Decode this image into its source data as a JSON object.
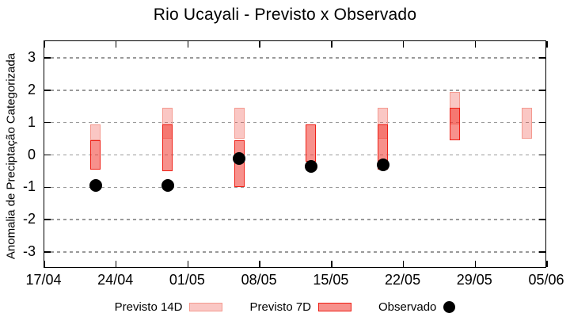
{
  "chart_data": {
    "type": "bar",
    "subtype": "floating-range-bars-with-observed-points",
    "title": "Rio Ucayali - Previsto x Observado",
    "ylabel": "Anomalia de Preciptação Categorizada",
    "xlabel": "",
    "ylim": [
      -3.52,
      3.52
    ],
    "yticks": [
      3,
      2,
      1,
      0,
      -1,
      -2,
      -3
    ],
    "grid": "horizontal-dashed",
    "x_axis": {
      "tick_labels": [
        "17/04",
        "24/04",
        "01/05",
        "08/05",
        "15/05",
        "22/05",
        "29/05",
        "05/06"
      ],
      "tick_days": [
        0,
        7,
        14,
        21,
        28,
        35,
        42,
        49
      ],
      "total_days": 49
    },
    "groups": [
      {
        "date": "22/04",
        "day": 5,
        "previsto14": [
          0.45,
          0.95
        ],
        "previsto7": [
          -0.45,
          0.45
        ],
        "observado": -0.95
      },
      {
        "date": "29/04",
        "day": 12,
        "previsto14": [
          0.5,
          1.45
        ],
        "previsto7": [
          -0.5,
          0.95
        ],
        "observado": -0.95
      },
      {
        "date": "06/05",
        "day": 19,
        "previsto14": [
          0.5,
          1.45
        ],
        "previsto7": [
          -1.0,
          0.45
        ],
        "observado": -0.1
      },
      {
        "date": "13/05",
        "day": 26,
        "previsto14": null,
        "previsto7": [
          -0.2,
          0.95
        ],
        "observado": -0.35
      },
      {
        "date": "20/05",
        "day": 33,
        "previsto14": [
          0.5,
          1.45
        ],
        "previsto7": [
          -0.45,
          0.95
        ],
        "observado": -0.3
      },
      {
        "date": "27/05",
        "day": 40,
        "previsto14": [
          0.95,
          1.95
        ],
        "previsto7": [
          0.45,
          1.45
        ],
        "observado": null
      },
      {
        "date": "03/06",
        "day": 47,
        "previsto14": [
          0.5,
          1.45
        ],
        "previsto7": null,
        "observado": null
      }
    ],
    "legend": {
      "position": "bottom",
      "items": [
        {
          "label": "Previsto 14D",
          "swatch": "light-pink-box"
        },
        {
          "label": "Previsto 7D",
          "swatch": "red-box"
        },
        {
          "label": "Observado",
          "swatch": "black-dot"
        }
      ]
    },
    "colors": {
      "previsto14_fill": "rgba(240,70,58,0.30)",
      "previsto14_border": "#F49A90",
      "previsto7_fill": "rgba(240,55,45,0.55)",
      "previsto7_border": "#EE2016",
      "observado": "#000000",
      "grid": "#9A9A9A",
      "axis": "#000000",
      "background": "#FFFFFF"
    }
  }
}
